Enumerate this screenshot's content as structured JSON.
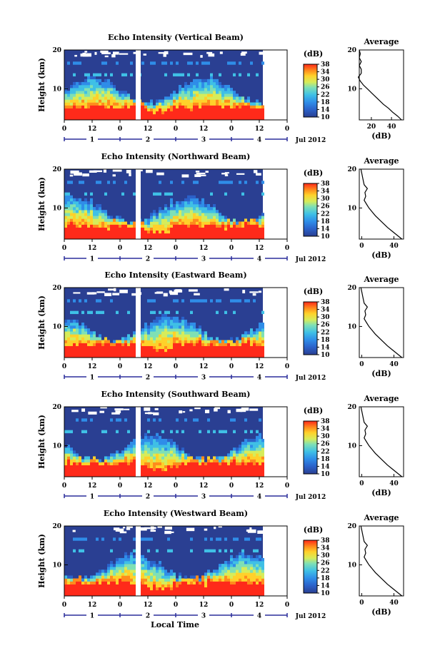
{
  "figure": {
    "xaxis_label": "Local Time",
    "date_label": "Jul 2012",
    "colorbar_label": "(dB)",
    "avg_title": "Average",
    "avg_xlabel": "(dB)",
    "ylabel": "Height (km)"
  },
  "colors": {
    "background_dark": "#2a3f92",
    "surface_red": "#ff2a1a",
    "day_axis_blue": "#2b2e9b"
  },
  "chart_data": [
    {
      "type": "heatmap",
      "title": "Echo Intensity (Vertical Beam)",
      "x_ticks": [
        "0",
        "12",
        "0",
        "12",
        "0",
        "12",
        "0",
        "12",
        "0"
      ],
      "day_ticks": [
        "1",
        "2",
        "3",
        "4"
      ],
      "ylabel": "Height (km)",
      "ylim": [
        2,
        20
      ],
      "y_ticks": [
        10,
        20
      ],
      "colorbar": {
        "label": "(dB)",
        "range": [
          10,
          38
        ],
        "ticks": [
          10,
          14,
          18,
          22,
          26,
          30,
          34,
          38
        ]
      },
      "data_gap": "around 0 LT on Jul 2",
      "average": {
        "title": "Average",
        "xlabel": "(dB)",
        "x_ticks": [
          20,
          40
        ],
        "xlim": [
          8,
          52
        ],
        "height_km": [
          2,
          3,
          4,
          5,
          6,
          7,
          8,
          9,
          10,
          11,
          12,
          13,
          14,
          15,
          16,
          17,
          18,
          19,
          20
        ],
        "db": [
          50,
          46,
          41,
          37,
          32,
          28,
          24,
          20,
          16,
          12,
          9,
          7,
          10,
          10,
          8,
          10,
          8,
          9,
          8
        ]
      }
    },
    {
      "type": "heatmap",
      "title": "Echo Intensity (Northward Beam)",
      "x_ticks": [
        "0",
        "12",
        "0",
        "12",
        "0",
        "12",
        "0",
        "12",
        "0"
      ],
      "day_ticks": [
        "1",
        "2",
        "3",
        "4"
      ],
      "ylabel": "Height (km)",
      "ylim": [
        2,
        20
      ],
      "y_ticks": [
        10,
        20
      ],
      "colorbar": {
        "label": "(dB)",
        "range": [
          10,
          38
        ],
        "ticks": [
          10,
          14,
          18,
          22,
          26,
          30,
          34,
          38
        ]
      },
      "data_gap": "around 0 LT on Jul 2",
      "average": {
        "title": "Average",
        "xlabel": "(dB)",
        "x_ticks": [
          0,
          40
        ],
        "xlim": [
          -3,
          52
        ],
        "height_km": [
          2,
          3,
          4,
          5,
          6,
          7,
          8,
          9,
          10,
          11,
          12,
          13,
          14,
          15,
          16,
          17,
          18,
          19,
          20
        ],
        "db": [
          50,
          44,
          38,
          32,
          27,
          22,
          17,
          13,
          9,
          6,
          3,
          5,
          4,
          7,
          3,
          2,
          1,
          0,
          -1
        ]
      }
    },
    {
      "type": "heatmap",
      "title": "Echo Intensity (Eastward Beam)",
      "x_ticks": [
        "0",
        "12",
        "0",
        "12",
        "0",
        "12",
        "0",
        "12",
        "0"
      ],
      "day_ticks": [
        "1",
        "2",
        "3",
        "4"
      ],
      "ylabel": "Height (km)",
      "ylim": [
        2,
        20
      ],
      "y_ticks": [
        10,
        20
      ],
      "colorbar": {
        "label": "(dB)",
        "range": [
          10,
          38
        ],
        "ticks": [
          10,
          14,
          18,
          22,
          26,
          30,
          34,
          38
        ]
      },
      "data_gap": "around 0 LT on Jul 2",
      "average": {
        "title": "Average",
        "xlabel": "(dB)",
        "x_ticks": [
          0,
          40
        ],
        "xlim": [
          -3,
          52
        ],
        "height_km": [
          2,
          3,
          4,
          5,
          6,
          7,
          8,
          9,
          10,
          11,
          12,
          13,
          14,
          15,
          16,
          17,
          18,
          19,
          20
        ],
        "db": [
          50,
          44,
          38,
          32,
          27,
          22,
          17,
          13,
          9,
          6,
          3,
          5,
          4,
          7,
          3,
          2,
          1,
          0,
          -1
        ]
      }
    },
    {
      "type": "heatmap",
      "title": "Echo Intensity (Southward Beam)",
      "x_ticks": [
        "0",
        "12",
        "0",
        "12",
        "0",
        "12",
        "0",
        "12",
        "0"
      ],
      "day_ticks": [
        "1",
        "2",
        "3",
        "4"
      ],
      "ylabel": "Height (km)",
      "ylim": [
        2,
        20
      ],
      "y_ticks": [
        10,
        20
      ],
      "colorbar": {
        "label": "(dB)",
        "range": [
          10,
          38
        ],
        "ticks": [
          10,
          14,
          18,
          22,
          26,
          30,
          34,
          38
        ]
      },
      "data_gap": "around 0 LT on Jul 2",
      "average": {
        "title": "Average",
        "xlabel": "(dB)",
        "x_ticks": [
          0,
          40
        ],
        "xlim": [
          -3,
          52
        ],
        "height_km": [
          2,
          3,
          4,
          5,
          6,
          7,
          8,
          9,
          10,
          11,
          12,
          13,
          14,
          15,
          16,
          17,
          18,
          19,
          20
        ],
        "db": [
          50,
          44,
          38,
          32,
          27,
          22,
          17,
          13,
          9,
          6,
          3,
          5,
          4,
          7,
          3,
          2,
          1,
          0,
          -1
        ]
      }
    },
    {
      "type": "heatmap",
      "title": "Echo Intensity (Westward Beam)",
      "x_ticks": [
        "0",
        "12",
        "0",
        "12",
        "0",
        "12",
        "0",
        "12",
        "0"
      ],
      "day_ticks": [
        "1",
        "2",
        "3",
        "4"
      ],
      "ylabel": "Height (km)",
      "ylim": [
        2,
        20
      ],
      "y_ticks": [
        10,
        20
      ],
      "colorbar": {
        "label": "(dB)",
        "range": [
          10,
          38
        ],
        "ticks": [
          10,
          14,
          18,
          22,
          26,
          30,
          34,
          38
        ]
      },
      "data_gap": "around 0 LT on Jul 2",
      "average": {
        "title": "Average",
        "xlabel": "(dB)",
        "x_ticks": [
          0,
          40
        ],
        "xlim": [
          -3,
          52
        ],
        "height_km": [
          2,
          3,
          4,
          5,
          6,
          7,
          8,
          9,
          10,
          11,
          12,
          13,
          14,
          15,
          16,
          17,
          18,
          19,
          20
        ],
        "db": [
          50,
          44,
          38,
          32,
          27,
          22,
          17,
          13,
          9,
          6,
          3,
          5,
          4,
          7,
          3,
          2,
          1,
          0,
          -1
        ]
      }
    }
  ]
}
